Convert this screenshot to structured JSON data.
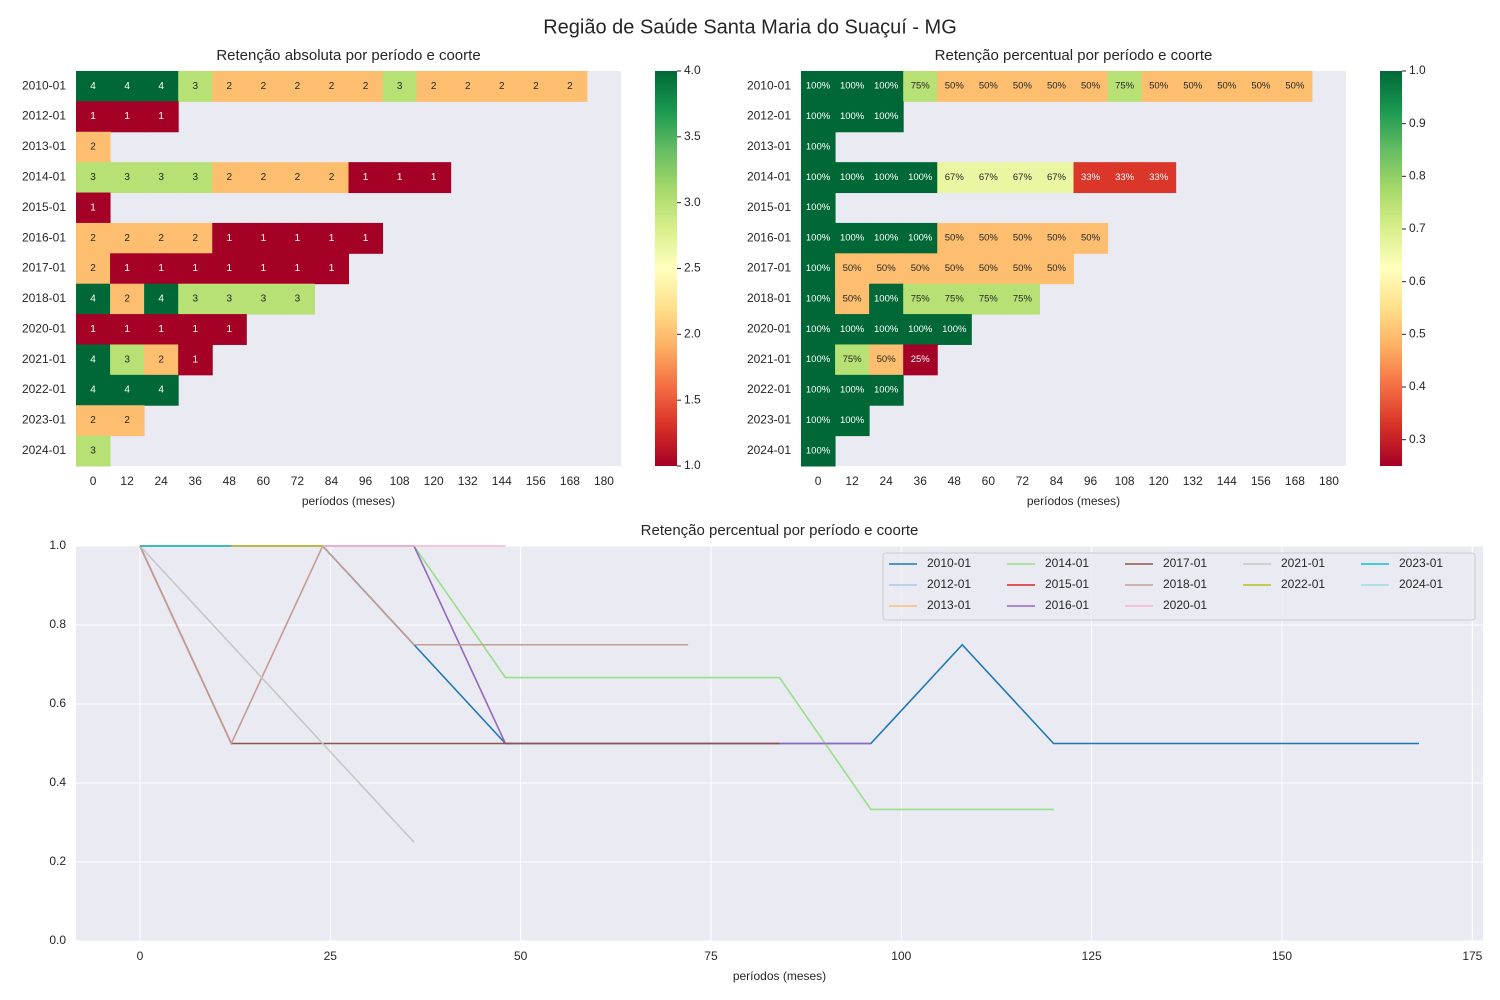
{
  "title": "Região de Saúde Santa Maria do Suaçuí - MG",
  "chart_data": [
    {
      "type": "heatmap",
      "title": "Retenção absoluta por período e coorte",
      "xlabel": "períodos (meses)",
      "rows": [
        "2010-01",
        "2012-01",
        "2013-01",
        "2014-01",
        "2015-01",
        "2016-01",
        "2017-01",
        "2018-01",
        "2020-01",
        "2021-01",
        "2022-01",
        "2023-01",
        "2024-01"
      ],
      "columns": [
        0,
        12,
        24,
        36,
        48,
        60,
        72,
        84,
        96,
        108,
        120,
        132,
        144,
        156,
        168,
        180
      ],
      "values": [
        [
          4,
          4,
          4,
          3,
          2,
          2,
          2,
          2,
          2,
          3,
          2,
          2,
          2,
          2,
          2,
          null
        ],
        [
          1,
          1,
          1,
          null,
          null,
          null,
          null,
          null,
          null,
          null,
          null,
          null,
          null,
          null,
          null,
          null
        ],
        [
          2,
          null,
          null,
          null,
          null,
          null,
          null,
          null,
          null,
          null,
          null,
          null,
          null,
          null,
          null,
          null
        ],
        [
          3,
          3,
          3,
          3,
          2,
          2,
          2,
          2,
          1,
          1,
          1,
          null,
          null,
          null,
          null,
          null
        ],
        [
          1,
          null,
          null,
          null,
          null,
          null,
          null,
          null,
          null,
          null,
          null,
          null,
          null,
          null,
          null,
          null
        ],
        [
          2,
          2,
          2,
          2,
          1,
          1,
          1,
          1,
          1,
          null,
          null,
          null,
          null,
          null,
          null,
          null
        ],
        [
          2,
          1,
          1,
          1,
          1,
          1,
          1,
          1,
          null,
          null,
          null,
          null,
          null,
          null,
          null,
          null
        ],
        [
          4,
          2,
          4,
          3,
          3,
          3,
          3,
          null,
          null,
          null,
          null,
          null,
          null,
          null,
          null,
          null
        ],
        [
          1,
          1,
          1,
          1,
          1,
          null,
          null,
          null,
          null,
          null,
          null,
          null,
          null,
          null,
          null,
          null
        ],
        [
          4,
          3,
          2,
          1,
          null,
          null,
          null,
          null,
          null,
          null,
          null,
          null,
          null,
          null,
          null,
          null
        ],
        [
          4,
          4,
          4,
          null,
          null,
          null,
          null,
          null,
          null,
          null,
          null,
          null,
          null,
          null,
          null,
          null
        ],
        [
          2,
          2,
          null,
          null,
          null,
          null,
          null,
          null,
          null,
          null,
          null,
          null,
          null,
          null,
          null,
          null
        ],
        [
          3,
          null,
          null,
          null,
          null,
          null,
          null,
          null,
          null,
          null,
          null,
          null,
          null,
          null,
          null,
          null
        ]
      ],
      "colormap": "RdYlGn",
      "zlim": [
        1,
        4
      ],
      "zticks": [
        {
          "value": 1,
          "label": "1.0"
        },
        1.5,
        {
          "value": 2,
          "label": "2.0"
        },
        2.5,
        {
          "value": 3,
          "label": "3.0"
        },
        3.5,
        {
          "value": 4,
          "label": "4.0"
        }
      ]
    },
    {
      "type": "heatmap",
      "title": "Retenção percentual por período e coorte",
      "xlabel": "períodos (meses)",
      "rows": [
        "2010-01",
        "2012-01",
        "2013-01",
        "2014-01",
        "2015-01",
        "2016-01",
        "2017-01",
        "2018-01",
        "2020-01",
        "2021-01",
        "2022-01",
        "2023-01",
        "2024-01"
      ],
      "columns": [
        0,
        12,
        24,
        36,
        48,
        60,
        72,
        84,
        96,
        108,
        120,
        132,
        144,
        156,
        168,
        180
      ],
      "values": [
        [
          1,
          1,
          1,
          0.75,
          0.5,
          0.5,
          0.5,
          0.5,
          0.5,
          0.75,
          0.5,
          0.5,
          0.5,
          0.5,
          0.5,
          null
        ],
        [
          1,
          1,
          1,
          null,
          null,
          null,
          null,
          null,
          null,
          null,
          null,
          null,
          null,
          null,
          null,
          null
        ],
        [
          1,
          null,
          null,
          null,
          null,
          null,
          null,
          null,
          null,
          null,
          null,
          null,
          null,
          null,
          null,
          null
        ],
        [
          1,
          1,
          1,
          1,
          0.667,
          0.667,
          0.667,
          0.667,
          0.333,
          0.333,
          0.333,
          null,
          null,
          null,
          null,
          null
        ],
        [
          1,
          null,
          null,
          null,
          null,
          null,
          null,
          null,
          null,
          null,
          null,
          null,
          null,
          null,
          null,
          null
        ],
        [
          1,
          1,
          1,
          1,
          0.5,
          0.5,
          0.5,
          0.5,
          0.5,
          null,
          null,
          null,
          null,
          null,
          null,
          null
        ],
        [
          1,
          0.5,
          0.5,
          0.5,
          0.5,
          0.5,
          0.5,
          0.5,
          null,
          null,
          null,
          null,
          null,
          null,
          null,
          null
        ],
        [
          1,
          0.5,
          1,
          0.75,
          0.75,
          0.75,
          0.75,
          null,
          null,
          null,
          null,
          null,
          null,
          null,
          null,
          null
        ],
        [
          1,
          1,
          1,
          1,
          1,
          null,
          null,
          null,
          null,
          null,
          null,
          null,
          null,
          null,
          null,
          null
        ],
        [
          1,
          0.75,
          0.5,
          0.25,
          null,
          null,
          null,
          null,
          null,
          null,
          null,
          null,
          null,
          null,
          null,
          null
        ],
        [
          1,
          1,
          1,
          null,
          null,
          null,
          null,
          null,
          null,
          null,
          null,
          null,
          null,
          null,
          null,
          null
        ],
        [
          1,
          1,
          null,
          null,
          null,
          null,
          null,
          null,
          null,
          null,
          null,
          null,
          null,
          null,
          null,
          null
        ],
        [
          1,
          null,
          null,
          null,
          null,
          null,
          null,
          null,
          null,
          null,
          null,
          null,
          null,
          null,
          null,
          null
        ]
      ],
      "value_labels": [
        [
          "100%",
          "100%",
          "100%",
          "75%",
          "50%",
          "50%",
          "50%",
          "50%",
          "50%",
          "75%",
          "50%",
          "50%",
          "50%",
          "50%",
          "50%",
          null
        ],
        [
          "100%",
          "100%",
          "100%",
          null,
          null,
          null,
          null,
          null,
          null,
          null,
          null,
          null,
          null,
          null,
          null,
          null
        ],
        [
          "100%",
          null,
          null,
          null,
          null,
          null,
          null,
          null,
          null,
          null,
          null,
          null,
          null,
          null,
          null,
          null
        ],
        [
          "100%",
          "100%",
          "100%",
          "100%",
          "67%",
          "67%",
          "67%",
          "67%",
          "33%",
          "33%",
          "33%",
          null,
          null,
          null,
          null,
          null
        ],
        [
          "100%",
          null,
          null,
          null,
          null,
          null,
          null,
          null,
          null,
          null,
          null,
          null,
          null,
          null,
          null,
          null
        ],
        [
          "100%",
          "100%",
          "100%",
          "100%",
          "50%",
          "50%",
          "50%",
          "50%",
          "50%",
          null,
          null,
          null,
          null,
          null,
          null,
          null
        ],
        [
          "100%",
          "50%",
          "50%",
          "50%",
          "50%",
          "50%",
          "50%",
          "50%",
          null,
          null,
          null,
          null,
          null,
          null,
          null,
          null
        ],
        [
          "100%",
          "50%",
          "100%",
          "75%",
          "75%",
          "75%",
          "75%",
          null,
          null,
          null,
          null,
          null,
          null,
          null,
          null,
          null
        ],
        [
          "100%",
          "100%",
          "100%",
          "100%",
          "100%",
          null,
          null,
          null,
          null,
          null,
          null,
          null,
          null,
          null,
          null,
          null
        ],
        [
          "100%",
          "75%",
          "50%",
          "25%",
          null,
          null,
          null,
          null,
          null,
          null,
          null,
          null,
          null,
          null,
          null,
          null
        ],
        [
          "100%",
          "100%",
          "100%",
          null,
          null,
          null,
          null,
          null,
          null,
          null,
          null,
          null,
          null,
          null,
          null,
          null
        ],
        [
          "100%",
          "100%",
          null,
          null,
          null,
          null,
          null,
          null,
          null,
          null,
          null,
          null,
          null,
          null,
          null,
          null
        ],
        [
          "100%",
          null,
          null,
          null,
          null,
          null,
          null,
          null,
          null,
          null,
          null,
          null,
          null,
          null,
          null,
          null
        ]
      ],
      "colormap": "RdYlGn",
      "zlim": [
        0.25,
        1
      ],
      "zticks": [
        0.3,
        0.4,
        0.5,
        0.6,
        0.7,
        0.8,
        0.9,
        {
          "value": 1,
          "label": "1.0"
        }
      ]
    },
    {
      "type": "line",
      "title": "Retenção percentual por período e coorte",
      "xlabel": "períodos (meses)",
      "x": [
        0,
        12,
        24,
        36,
        48,
        60,
        72,
        84,
        96,
        108,
        120,
        132,
        144,
        156,
        168
      ],
      "series": [
        {
          "name": "2010-01",
          "color": "#1f77b4",
          "values": [
            1,
            1,
            1,
            0.75,
            0.5,
            0.5,
            0.5,
            0.5,
            0.5,
            0.75,
            0.5,
            0.5,
            0.5,
            0.5,
            0.5
          ]
        },
        {
          "name": "2012-01",
          "color": "#aec7e8",
          "values": [
            1,
            1,
            1,
            null,
            null,
            null,
            null,
            null,
            null,
            null,
            null,
            null,
            null,
            null,
            null
          ]
        },
        {
          "name": "2013-01",
          "color": "#ffbb78",
          "values": [
            1,
            null,
            null,
            null,
            null,
            null,
            null,
            null,
            null,
            null,
            null,
            null,
            null,
            null,
            null
          ]
        },
        {
          "name": "2014-01",
          "color": "#98df8a",
          "values": [
            1,
            1,
            1,
            1,
            0.667,
            0.667,
            0.667,
            0.667,
            0.333,
            0.333,
            0.333,
            null,
            null,
            null,
            null
          ]
        },
        {
          "name": "2015-01",
          "color": "#d62728",
          "values": [
            1,
            null,
            null,
            null,
            null,
            null,
            null,
            null,
            null,
            null,
            null,
            null,
            null,
            null,
            null
          ]
        },
        {
          "name": "2016-01",
          "color": "#9467bd",
          "values": [
            1,
            1,
            1,
            1,
            0.5,
            0.5,
            0.5,
            0.5,
            0.5,
            null,
            null,
            null,
            null,
            null,
            null
          ]
        },
        {
          "name": "2017-01",
          "color": "#8c564b",
          "values": [
            1,
            0.5,
            0.5,
            0.5,
            0.5,
            0.5,
            0.5,
            0.5,
            null,
            null,
            null,
            null,
            null,
            null,
            null
          ]
        },
        {
          "name": "2018-01",
          "color": "#c49c94",
          "values": [
            1,
            0.5,
            1,
            0.75,
            0.75,
            0.75,
            0.75,
            null,
            null,
            null,
            null,
            null,
            null,
            null,
            null
          ]
        },
        {
          "name": "2020-01",
          "color": "#f7b6d2",
          "values": [
            1,
            1,
            1,
            1,
            1,
            null,
            null,
            null,
            null,
            null,
            null,
            null,
            null,
            null,
            null
          ]
        },
        {
          "name": "2021-01",
          "color": "#c7c7c7",
          "values": [
            1,
            0.75,
            0.5,
            0.25,
            null,
            null,
            null,
            null,
            null,
            null,
            null,
            null,
            null,
            null,
            null
          ]
        },
        {
          "name": "2022-01",
          "color": "#bcbd22",
          "values": [
            1,
            1,
            1,
            null,
            null,
            null,
            null,
            null,
            null,
            null,
            null,
            null,
            null,
            null,
            null
          ]
        },
        {
          "name": "2023-01",
          "color": "#17becf",
          "values": [
            1,
            1,
            null,
            null,
            null,
            null,
            null,
            null,
            null,
            null,
            null,
            null,
            null,
            null,
            null
          ]
        },
        {
          "name": "2024-01",
          "color": "#9edae5",
          "values": [
            1,
            null,
            null,
            null,
            null,
            null,
            null,
            null,
            null,
            null,
            null,
            null,
            null,
            null,
            null
          ]
        }
      ],
      "xlim": [
        -8.4,
        176.4
      ],
      "xticks": [
        0,
        25,
        50,
        75,
        100,
        125,
        150,
        175
      ],
      "ylim": [
        0,
        1
      ],
      "yticks": [
        {
          "value": 0,
          "label": "0.0"
        },
        0.2,
        0.4,
        0.6,
        0.8,
        {
          "value": 1,
          "label": "1.0"
        }
      ],
      "grid": true,
      "legend": "upper right",
      "legend_columns": 5
    }
  ]
}
